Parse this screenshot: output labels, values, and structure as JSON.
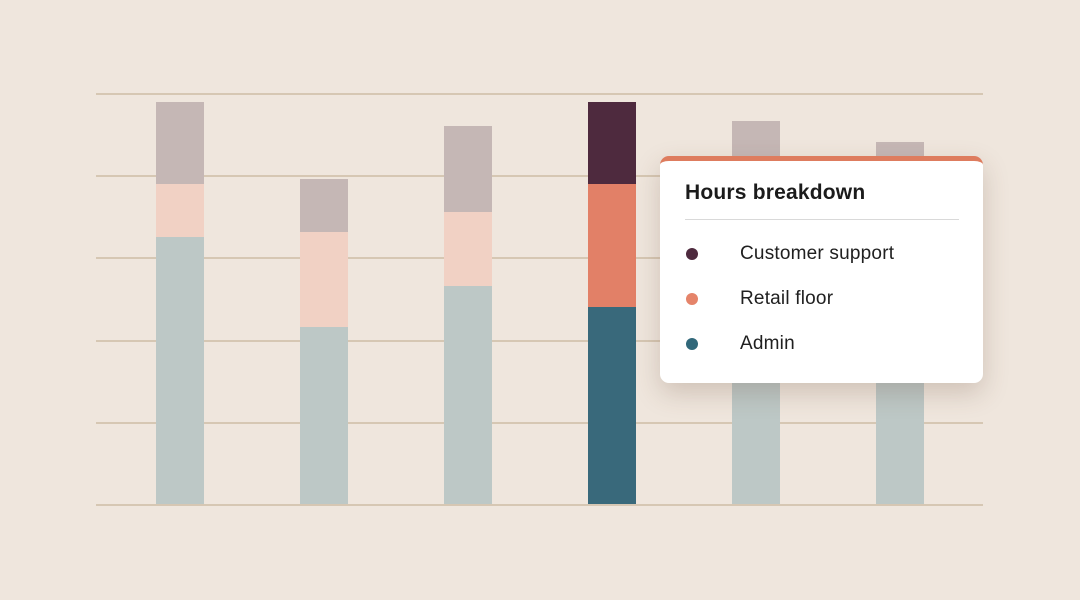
{
  "tooltip": {
    "title": "Hours breakdown",
    "accent_color": "#de7c5e",
    "items": [
      {
        "label": "Customer support",
        "color": "#4e2a3e"
      },
      {
        "label": "Retail floor",
        "color": "#e5846a"
      },
      {
        "label": "Admin",
        "color": "#31687a"
      }
    ]
  },
  "colors": {
    "background": "#efe6dd",
    "gridline": "#d6c7b3",
    "card_background": "#ffffff",
    "muted_customer_support": "#c5b7b5",
    "muted_retail_floor": "#f1d1c4",
    "muted_admin": "#bdc8c6",
    "highlight_customer_support": "#4e2a3e",
    "highlight_retail_floor": "#e28067",
    "highlight_admin": "#39697b"
  },
  "chart_data": {
    "type": "bar",
    "stacked": true,
    "title": "",
    "xlabel": "",
    "ylabel": "",
    "categories": [
      "",
      "",
      "",
      "",
      "",
      ""
    ],
    "series": [
      {
        "name": "Admin",
        "values": [
          32.5,
          21.5,
          26.5,
          24.0,
          25.0,
          23.5
        ]
      },
      {
        "name": "Retail floor",
        "values": [
          6.5,
          11.5,
          9.0,
          15.0,
          13.5,
          12.0
        ]
      },
      {
        "name": "Customer support",
        "values": [
          10.0,
          6.5,
          10.5,
          10.0,
          8.0,
          8.5
        ]
      }
    ],
    "highlighted_bar_index": 3,
    "ylim": [
      0,
      50
    ],
    "gridline_step": 10,
    "grid": true,
    "axis_tick_labels_visible": false,
    "legend_position": "tooltip-overlay"
  }
}
